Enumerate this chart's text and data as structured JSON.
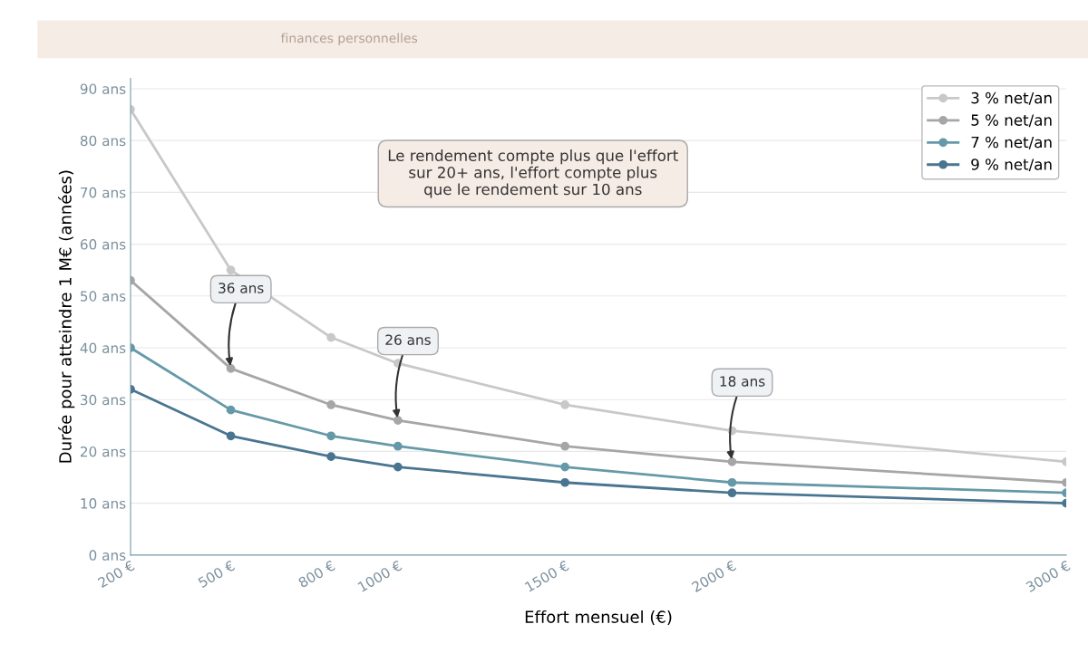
{
  "chart_data": {
    "type": "line",
    "subtitle": "finances personnelles",
    "xlabel": "Effort mensuel (€)",
    "ylabel": "Durée pour atteindre 1 M€ (années)",
    "x": [
      200,
      500,
      800,
      1000,
      1500,
      2000,
      3000
    ],
    "series": [
      {
        "name": "3 % net/an",
        "color": "#c8c8c8",
        "values": [
          86,
          55,
          42,
          37,
          29,
          24,
          18
        ]
      },
      {
        "name": "5 % net/an",
        "color": "#a6a6a6",
        "values": [
          53,
          36,
          29,
          26,
          21,
          18,
          14
        ]
      },
      {
        "name": "7 % net/an",
        "color": "#6699a8",
        "values": [
          40,
          28,
          23,
          21,
          17,
          14,
          12
        ]
      },
      {
        "name": "9 % net/an",
        "color": "#4a7590",
        "values": [
          32,
          23,
          19,
          17,
          14,
          12,
          10
        ]
      }
    ],
    "xlim": [
      200,
      3000
    ],
    "xticks": [
      {
        "value": 200,
        "label": "200 €"
      },
      {
        "value": 500,
        "label": "500 €"
      },
      {
        "value": 800,
        "label": "800 €"
      },
      {
        "value": 1000,
        "label": "1000 €"
      },
      {
        "value": 1500,
        "label": "1500 €"
      },
      {
        "value": 2000,
        "label": "2000 €"
      },
      {
        "value": 3000,
        "label": "3000 €"
      }
    ],
    "ylim": [
      0,
      92
    ],
    "yticks": [
      {
        "value": 0,
        "label": "0 ans"
      },
      {
        "value": 10,
        "label": "10 ans"
      },
      {
        "value": 20,
        "label": "20 ans"
      },
      {
        "value": 30,
        "label": "30 ans"
      },
      {
        "value": 40,
        "label": "40 ans"
      },
      {
        "value": 50,
        "label": "50 ans"
      },
      {
        "value": 60,
        "label": "60 ans"
      },
      {
        "value": 70,
        "label": "70 ans"
      },
      {
        "value": 80,
        "label": "80 ans"
      },
      {
        "value": 90,
        "label": "90 ans"
      }
    ],
    "annotations": [
      "Le rendement compte plus que l'effort\nsur 20+ ans, l'effort compte plus\nque le rendement sur 10 ans",
      {
        "text": "36 ans",
        "x": 500,
        "y": 36
      },
      {
        "text": "26 ans",
        "x": 1000,
        "y": 26
      },
      {
        "text": "18 ans",
        "x": 2000,
        "y": 18
      }
    ],
    "grid": "y",
    "legend": "top right",
    "marker": "circle",
    "line_style": "solid"
  }
}
